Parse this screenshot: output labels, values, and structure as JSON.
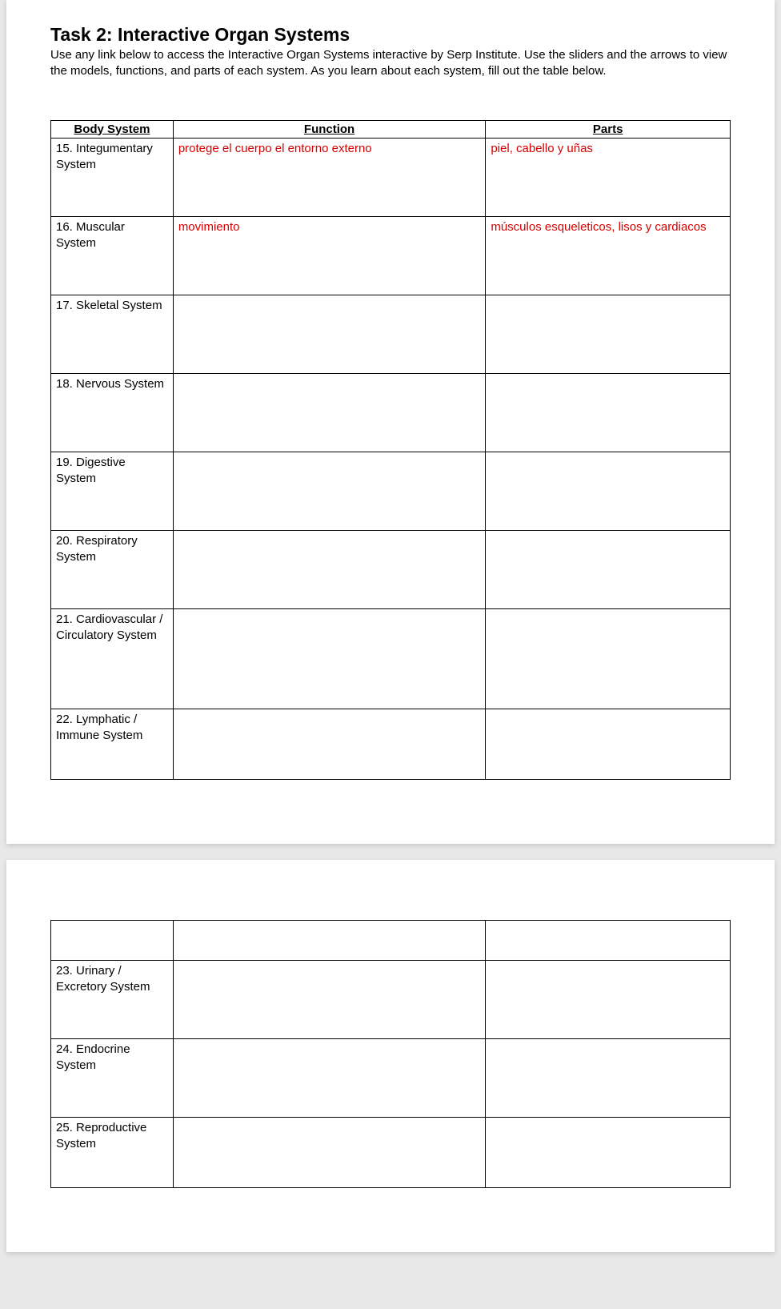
{
  "task": {
    "title": "Task 2: Interactive Organ Systems",
    "description": "Use any link below to access the Interactive Organ Systems interactive by Serp Institute. Use the sliders and the arrows to view the models, functions, and parts of each system. As you learn about each system, fill out the table below."
  },
  "table": {
    "headers": {
      "system": "Body System",
      "function": "Function",
      "parts": "Parts"
    },
    "column_widths": {
      "system": "18%",
      "function": "46%",
      "parts": "36%"
    },
    "border_color": "#000000",
    "text_color": "#000000",
    "answer_color": "#d80000",
    "rows_page1": [
      {
        "system": "15. Integumentary System",
        "function": "protege el cuerpo el entorno externo",
        "parts": "piel, cabello y uñas",
        "height": "row-std"
      },
      {
        "system": "16. Muscular System",
        "function": "movimiento",
        "parts": "músculos esqueleticos, lisos y cardiacos",
        "height": "row-std"
      },
      {
        "system": "17. Skeletal System",
        "function": "",
        "parts": "",
        "height": "row-std"
      },
      {
        "system": "18. Nervous System",
        "function": "",
        "parts": "",
        "height": "row-std"
      },
      {
        "system": "19. Digestive System",
        "function": "",
        "parts": "",
        "height": "row-std"
      },
      {
        "system": "20. Respiratory System",
        "function": "",
        "parts": "",
        "height": "row-std"
      },
      {
        "system": "21. Cardiovascular / Circulatory System",
        "function": "",
        "parts": "",
        "height": "row-tall"
      },
      {
        "system": "22. Lymphatic / Immune System",
        "function": "",
        "parts": "",
        "height": "row-short"
      }
    ],
    "rows_page2": [
      {
        "system": "",
        "function": "",
        "parts": "",
        "height": "row-blank"
      },
      {
        "system": "23. Urinary / Excretory System",
        "function": "",
        "parts": "",
        "height": "row-std"
      },
      {
        "system": "24. Endocrine System",
        "function": "",
        "parts": "",
        "height": "row-std"
      },
      {
        "system": "25. Reproductive System",
        "function": "",
        "parts": "",
        "height": "row-short"
      }
    ]
  },
  "styling": {
    "page_bg": "#ffffff",
    "body_bg": "#e8e8e8",
    "title_fontsize": 23,
    "desc_fontsize": 15,
    "cell_fontsize": 15
  }
}
